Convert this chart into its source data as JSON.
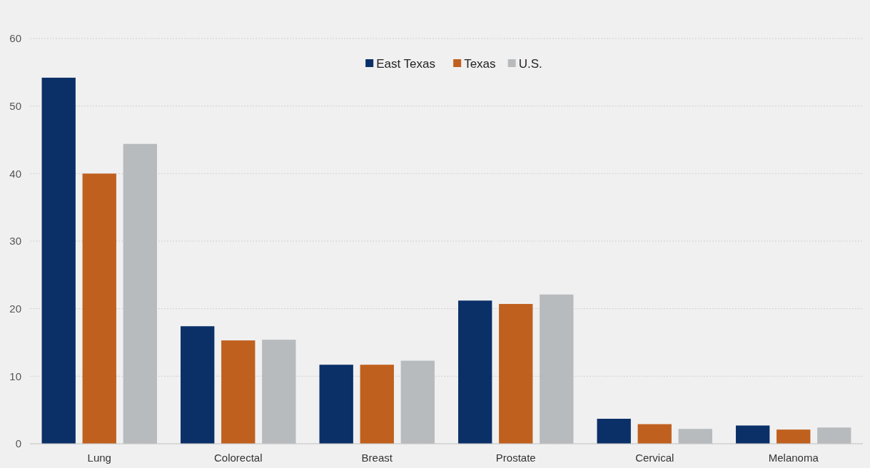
{
  "chart_data": {
    "type": "bar",
    "categories": [
      "Lung",
      "Colorectal",
      "Breast",
      "Prostate",
      "Cervical",
      "Melanoma"
    ],
    "series": [
      {
        "name": "East Texas",
        "color": "#0b3068",
        "values": [
          54.2,
          17.4,
          11.7,
          21.2,
          3.7,
          2.7
        ]
      },
      {
        "name": "Texas",
        "color": "#c0601e",
        "values": [
          40.0,
          15.3,
          11.7,
          20.7,
          2.9,
          2.1
        ]
      },
      {
        "name": "U.S.",
        "color": "#b7bbbe",
        "values": [
          44.4,
          15.4,
          12.3,
          22.1,
          2.2,
          2.4
        ]
      }
    ],
    "ylim": [
      0,
      60
    ],
    "yticks": [
      0,
      10,
      20,
      30,
      40,
      50,
      60
    ],
    "grid": "y",
    "legend": "top"
  }
}
